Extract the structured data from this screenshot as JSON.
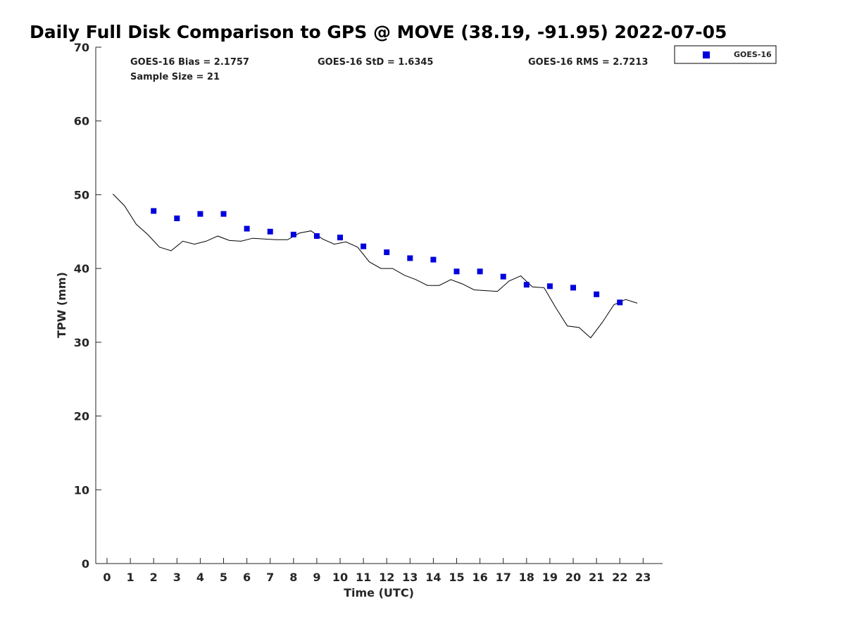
{
  "title": "Daily Full Disk Comparison to GPS @ MOVE (38.19, -91.95) 2022-07-05",
  "stats": {
    "bias": "GOES-16 Bias = 2.1757",
    "std": "GOES-16 StD = 1.6345",
    "rms": "GOES-16 RMS = 2.7213",
    "sample": "Sample Size = 21"
  },
  "legend": {
    "label": "GOES-16",
    "position": "top-right (outside axes)"
  },
  "colors": {
    "goes": "#0000dd",
    "gps_line": "#000000",
    "axis": "#262626"
  },
  "chart_data": {
    "type": "scatter",
    "xlabel": "Time (UTC)",
    "ylabel": "TPW (mm)",
    "xlim": [
      -0.5,
      23.8
    ],
    "ylim": [
      0,
      70
    ],
    "x_ticks": [
      0,
      1,
      2,
      3,
      4,
      5,
      6,
      7,
      8,
      9,
      10,
      11,
      12,
      13,
      14,
      15,
      16,
      17,
      18,
      19,
      20,
      21,
      22,
      23
    ],
    "y_ticks": [
      0,
      10,
      20,
      30,
      40,
      50,
      60,
      70
    ],
    "grid": false,
    "series": [
      {
        "name": "GOES-16",
        "kind": "scatter",
        "marker": "square",
        "x": [
          2,
          3,
          4,
          5,
          6,
          7,
          8,
          9,
          10,
          11,
          12,
          13,
          14,
          15,
          16,
          17,
          18,
          19,
          20,
          21,
          22
        ],
        "y": [
          47.8,
          46.8,
          47.4,
          47.4,
          45.4,
          45.0,
          44.6,
          44.4,
          44.2,
          43.0,
          42.2,
          41.4,
          41.2,
          39.6,
          39.6,
          38.9,
          37.8,
          37.6,
          37.4,
          36.5,
          35.4
        ]
      },
      {
        "kind": "line",
        "x": [
          0.25,
          0.75,
          1.25,
          1.75,
          2.25,
          2.75,
          3.25,
          3.75,
          4.25,
          4.75,
          5.25,
          5.75,
          6.25,
          6.75,
          7.25,
          7.75,
          8.25,
          8.75,
          9.25,
          9.75,
          10.25,
          10.75,
          11.25,
          11.75,
          12.25,
          12.75,
          13.25,
          13.75,
          14.25,
          14.75,
          15.25,
          15.75,
          16.25,
          16.75,
          17.25,
          17.75,
          18.25,
          18.75,
          19.25,
          19.75,
          20.25,
          20.75,
          21.25,
          21.75,
          22.25,
          22.75
        ],
        "y": [
          50.1,
          48.5,
          46.0,
          44.6,
          42.9,
          42.4,
          43.7,
          43.3,
          43.7,
          44.4,
          43.8,
          43.7,
          44.1,
          44.0,
          43.9,
          43.9,
          44.8,
          45.1,
          44.0,
          43.3,
          43.6,
          42.9,
          40.9,
          40.0,
          40.0,
          39.1,
          38.5,
          37.7,
          37.7,
          38.5,
          37.9,
          37.1,
          37.0,
          36.9,
          38.3,
          39.0,
          37.5,
          37.4,
          34.7,
          32.2,
          32.0,
          30.6,
          32.7,
          35.1,
          35.8,
          35.3
        ]
      }
    ]
  }
}
